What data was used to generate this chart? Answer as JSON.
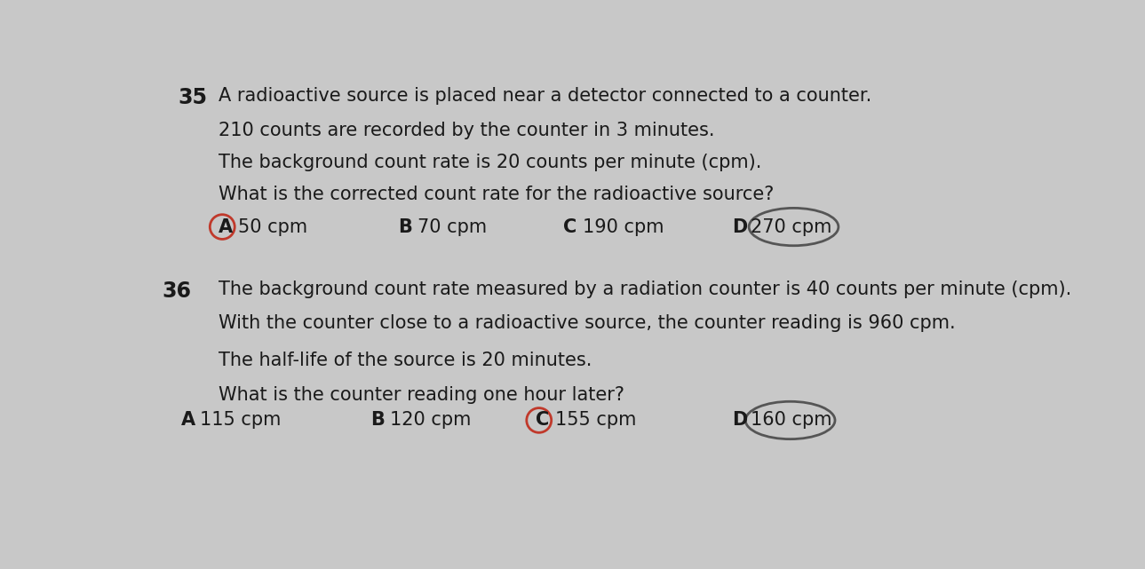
{
  "bg_color": "#c8c8c8",
  "text_color": "#1a1a1a",
  "q35_number": "35",
  "q35_line1": "A radioactive source is placed near a detector connected to a counter.",
  "q35_line2": "210 counts are recorded by the counter in 3 minutes.",
  "q35_line3": "The background count rate is 20 counts per minute (cpm).",
  "q35_line4": "What is the corrected count rate for the radioactive source?",
  "q35_opts": [
    {
      "label": "A",
      "text": "50 cpm",
      "circled_red": true,
      "circled_grey": false
    },
    {
      "label": "B",
      "text": "70 cpm",
      "circled_red": false,
      "circled_grey": false
    },
    {
      "label": "C",
      "text": "190 cpm",
      "circled_red": false,
      "circled_grey": false
    },
    {
      "label": "D",
      "text": "270 cpm",
      "circled_red": false,
      "circled_grey": true
    }
  ],
  "q36_number": "36",
  "q36_line1": "The background count rate measured by a radiation counter is 40 counts per minute (cpm).",
  "q36_line2": "With the counter close to a radioactive source, the counter reading is 960 cpm.",
  "q36_line3": "The half-life of the source is 20 minutes.",
  "q36_line4": "What is the counter reading one hour later?",
  "q36_opts": [
    {
      "label": "A",
      "text": "115 cpm",
      "circled_red": false,
      "circled_grey": false
    },
    {
      "label": "B",
      "text": "120 cpm",
      "circled_red": false,
      "circled_grey": false
    },
    {
      "label": "C",
      "text": "155 cpm",
      "circled_red": true,
      "circled_grey": false
    },
    {
      "label": "D",
      "text": "160 cpm",
      "circled_red": false,
      "circled_grey": true
    }
  ],
  "red_color": "#c0392b",
  "grey_color": "#555555",
  "fs_qnum": 17,
  "fs_body": 15,
  "fs_opt": 15
}
